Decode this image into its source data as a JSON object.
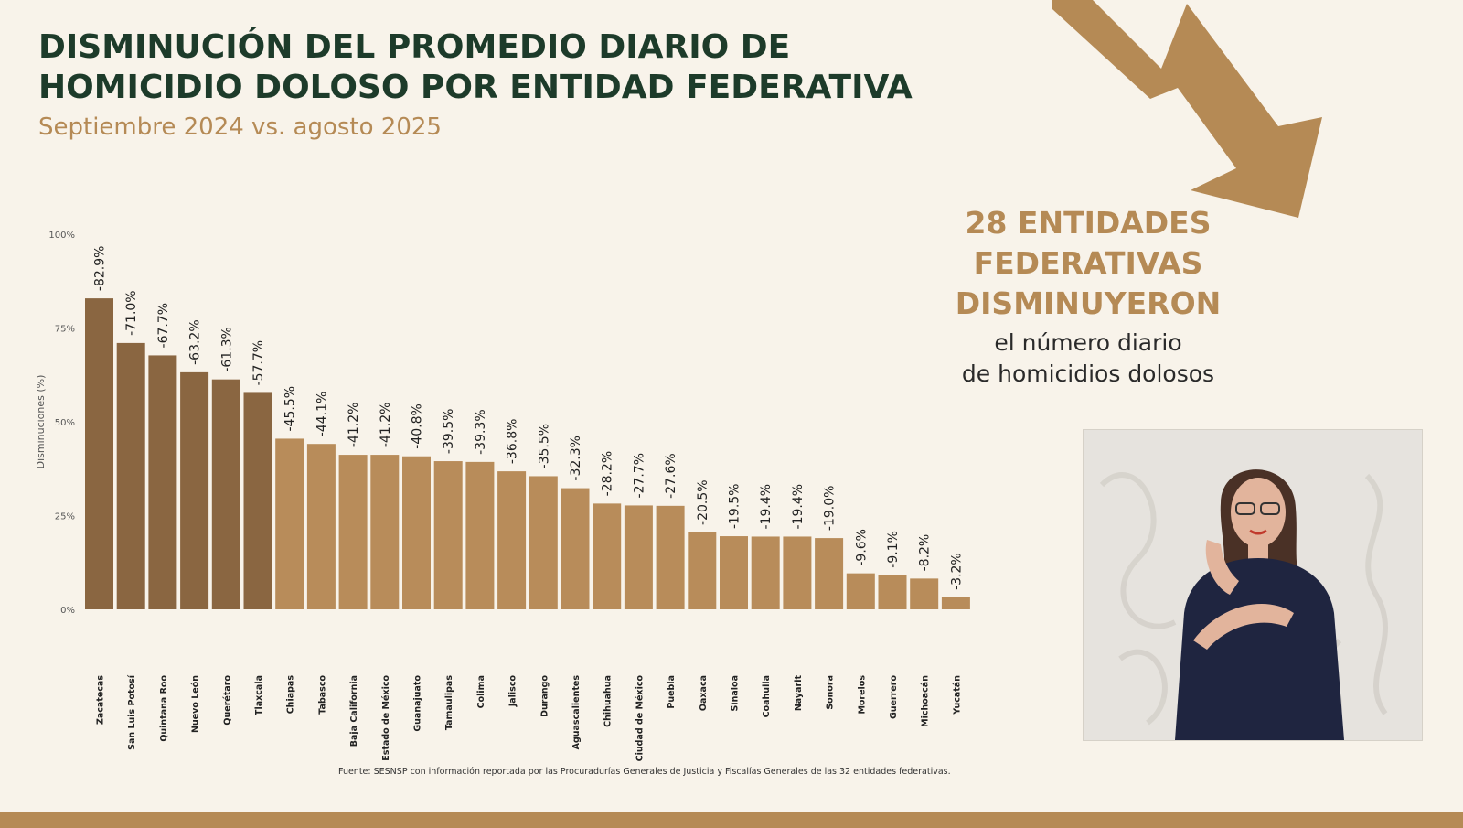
{
  "header": {
    "title_line1": "DISMINUCIÓN DEL PROMEDIO DIARIO DE",
    "title_line2": "HOMICIDIO DOLOSO POR ENTIDAD FEDERATIVA",
    "subtitle": "Septiembre 2024 vs. agosto 2025"
  },
  "callout": {
    "line1": "28 ENTIDADES",
    "line2": "FEDERATIVAS",
    "line3": "DISMINUYERON",
    "line4": "el número diario",
    "line5": "de homicidios dolosos"
  },
  "source": "Fuente: SESNSP con información reportada por las Procuradurías Generales de Justicia y Fiscalías Generales de las 32 entidades federativas.",
  "colors": {
    "title": "#1d3b2a",
    "accent": "#b58a55",
    "bar_dark": "#8a6641",
    "bar_light": "#b88c5a",
    "background": "#f8f3ea"
  },
  "chart_data": {
    "type": "bar",
    "title": "DISMINUCIÓN DEL PROMEDIO DIARIO DE HOMICIDIO DOLOSO POR ENTIDAD FEDERATIVA",
    "ylabel": "Disminuciones (%)",
    "xlabel": "",
    "ylim": [
      0,
      100
    ],
    "yticks": [
      "100%",
      "75%",
      "50%",
      "25%",
      "0%"
    ],
    "grid": false,
    "categories": [
      "Zacatecas",
      "San Luis Potosí",
      "Quintana Roo",
      "Nuevo León",
      "Querétaro",
      "Tlaxcala",
      "Chiapas",
      "Tabasco",
      "Baja California",
      "Estado de México",
      "Guanajuato",
      "Tamaulipas",
      "Colima",
      "Jalisco",
      "Durango",
      "Aguascalientes",
      "Chihuahua",
      "Ciudad de México",
      "Puebla",
      "Oaxaca",
      "Sinaloa",
      "Coahuila",
      "Nayarit",
      "Sonora",
      "Morelos",
      "Guerrero",
      "Michoacán",
      "Yucatán"
    ],
    "values": [
      82.9,
      71.0,
      67.7,
      63.2,
      61.3,
      57.7,
      45.5,
      44.1,
      41.2,
      41.2,
      40.8,
      39.5,
      39.3,
      36.8,
      35.5,
      32.3,
      28.2,
      27.7,
      27.6,
      20.5,
      19.5,
      19.4,
      19.4,
      19.0,
      9.6,
      9.1,
      8.2,
      3.2
    ],
    "labels": [
      "-82.9%",
      "-71.0%",
      "-67.7%",
      "-63.2%",
      "-61.3%",
      "-57.7%",
      "-45.5%",
      "-44.1%",
      "-41.2%",
      "-41.2%",
      "-40.8%",
      "-39.5%",
      "-39.3%",
      "-36.8%",
      "-35.5%",
      "-32.3%",
      "-28.2%",
      "-27.7%",
      "-27.6%",
      "-20.5%",
      "-19.5%",
      "-19.4%",
      "-19.4%",
      "-19.0%",
      "-9.6%",
      "-9.1%",
      "-8.2%",
      "-3.2%"
    ],
    "highlight_count": 6
  }
}
